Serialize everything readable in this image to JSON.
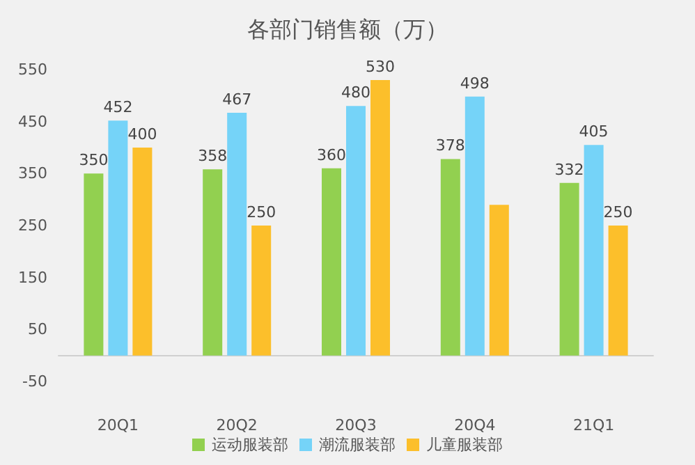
{
  "chart_data": {
    "type": "bar",
    "title": "各部门销售额（万）",
    "categories": [
      "20Q1",
      "20Q2",
      "20Q3",
      "20Q4",
      "21Q1"
    ],
    "series": [
      {
        "name": "运动服装部",
        "color": "#92d050",
        "values": [
          350,
          358,
          360,
          378,
          332
        ],
        "value_labels": [
          "350",
          "358",
          "360",
          "378",
          "332"
        ]
      },
      {
        "name": "潮流服装部",
        "color": "#75d3f8",
        "values": [
          452,
          467,
          480,
          498,
          405
        ],
        "value_labels": [
          "452",
          "467",
          "480",
          "498",
          "405"
        ]
      },
      {
        "name": "儿童服装部",
        "color": "#fcbf2b",
        "values": [
          400,
          250,
          530,
          290,
          250
        ],
        "value_labels": [
          "400",
          "250",
          "530",
          null,
          "250"
        ]
      }
    ],
    "ylim": [
      -50,
      550
    ],
    "yticks": [
      -50,
      50,
      150,
      250,
      350,
      450,
      550
    ],
    "grid": false,
    "legend": "bottom"
  }
}
